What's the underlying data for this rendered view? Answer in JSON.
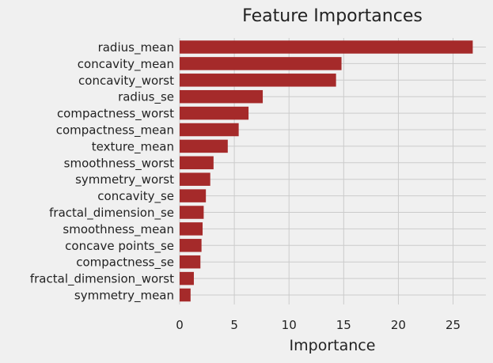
{
  "colors": {
    "background": "#f0f0f0",
    "bar": "#a52a2a",
    "grid": "#cbcbcb",
    "text": "#222222"
  },
  "chart_data": {
    "type": "bar",
    "orientation": "horizontal",
    "title": "Feature Importances",
    "xlabel": "Importance",
    "ylabel": "",
    "xlim": [
      0,
      28
    ],
    "xticks": [
      0,
      5,
      10,
      15,
      20,
      25
    ],
    "grid": true,
    "categories": [
      "radius_mean",
      "concavity_mean",
      "concavity_worst",
      "radius_se",
      "compactness_worst",
      "compactness_mean",
      "texture_mean",
      "smoothness_worst",
      "symmetry_worst",
      "concavity_se",
      "fractal_dimension_se",
      "smoothness_mean",
      "concave points_se",
      "compactness_se",
      "fractal_dimension_worst",
      "symmetry_mean"
    ],
    "values": [
      26.8,
      14.8,
      14.3,
      7.6,
      6.3,
      5.4,
      4.4,
      3.1,
      2.8,
      2.4,
      2.2,
      2.1,
      2.0,
      1.9,
      1.3,
      1.0
    ]
  }
}
